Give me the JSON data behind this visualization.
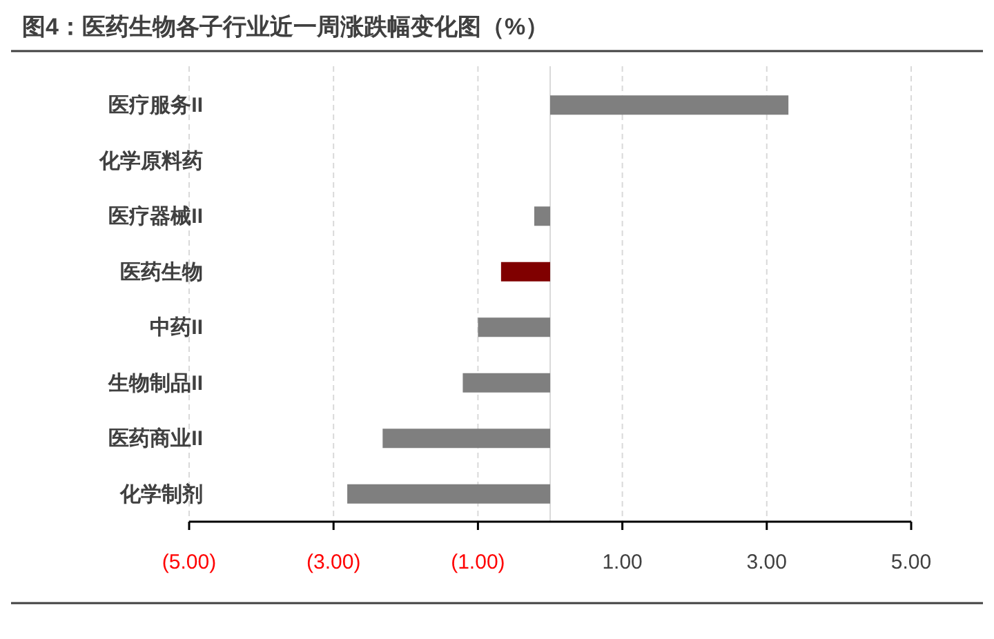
{
  "chart_data": {
    "type": "bar",
    "orientation": "horizontal",
    "title": "图4：医药生物各子行业近一周涨跌幅变化图（%）",
    "categories": [
      "医疗服务II",
      "化学原料药",
      "医疗器械II",
      "医药生物",
      "中药II",
      "生物制品II",
      "医药商业II",
      "化学制剂"
    ],
    "values": [
      3.3,
      0,
      -0.22,
      -0.68,
      -1.0,
      -1.21,
      -2.32,
      -2.81
    ],
    "colors": [
      "#7f7f7f",
      "#7f7f7f",
      "#7f7f7f",
      "#800000",
      "#7f7f7f",
      "#7f7f7f",
      "#7f7f7f",
      "#7f7f7f"
    ],
    "xlim": [
      -5,
      5
    ],
    "xticks": [
      {
        "value": -5,
        "label": "(5.00)"
      },
      {
        "value": -3,
        "label": "(3.00)"
      },
      {
        "value": -1,
        "label": "(1.00)"
      },
      {
        "value": 1,
        "label": "1.00"
      },
      {
        "value": 3,
        "label": "3.00"
      },
      {
        "value": 5,
        "label": "5.00"
      }
    ],
    "grid": "x"
  }
}
